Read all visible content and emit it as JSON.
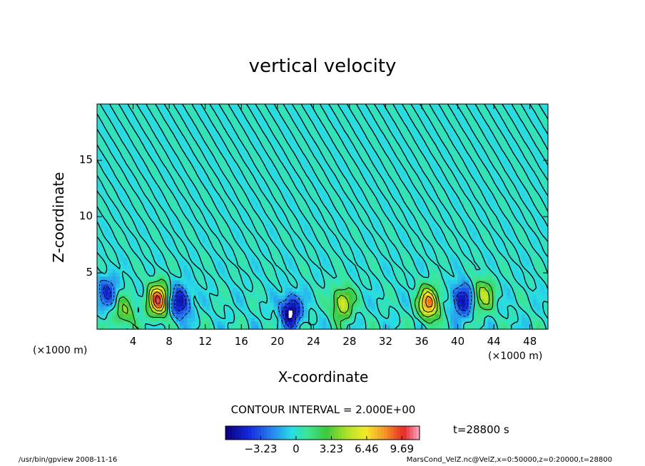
{
  "chart_data": {
    "type": "heatmap",
    "title": "vertical velocity",
    "xlabel": "X-coordinate",
    "ylabel": "Z-coordinate",
    "x_unit_left": "(×1000 m)",
    "x_unit_right": "(×1000 m)",
    "xlim": [
      0,
      50
    ],
    "ylim": [
      0,
      20
    ],
    "x_ticks": [
      "4",
      "8",
      "12",
      "16",
      "20",
      "24",
      "28",
      "32",
      "36",
      "40",
      "44",
      "48"
    ],
    "y_ticks": [
      "5",
      "10",
      "15"
    ],
    "contour_interval": "CONTOUR INTERVAL = 2.000E+00",
    "time": "t=28800 s",
    "colorbar": {
      "ticks": [
        "−3.23",
        "0",
        "3.23",
        "6.46",
        "9.69"
      ],
      "range": [
        -6.46,
        11.3
      ]
    },
    "features": [
      {
        "x": 6.8,
        "z": 2.6,
        "w": 10
      },
      {
        "x": 9.2,
        "z": 2.4,
        "w": -6
      },
      {
        "x": 21.5,
        "z": 1.6,
        "w": -7
      },
      {
        "x": 27.2,
        "z": 2.3,
        "w": 6
      },
      {
        "x": 36.8,
        "z": 2.3,
        "w": 9
      },
      {
        "x": 40.5,
        "z": 2.6,
        "w": -6
      },
      {
        "x": 42.8,
        "z": 3.0,
        "w": 5
      },
      {
        "x": 3.0,
        "z": 1.5,
        "w": 4
      },
      {
        "x": 1.2,
        "z": 3.3,
        "w": -4
      }
    ]
  },
  "footer": {
    "left": "/usr/bin/gpview   2008-11-16",
    "right": "MarsCond_VelZ.nc@VelZ,x=0:50000,z=0:20000,t=28800"
  }
}
